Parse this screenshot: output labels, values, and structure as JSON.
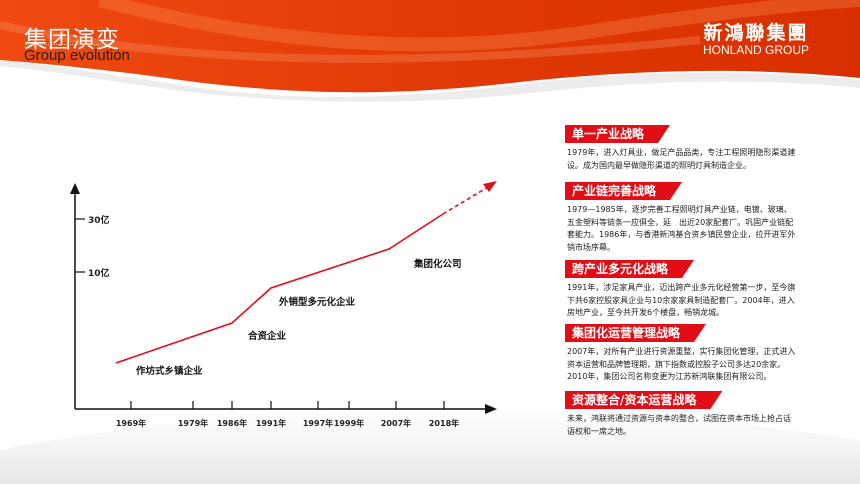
{
  "header": {
    "title_cn": "集团演变",
    "title_en": "Group evolution",
    "logo_cn": "新鴻聯集團",
    "logo_en": "HONLAND GROUP"
  },
  "chart": {
    "y_ticks": [
      "30亿",
      "10亿"
    ],
    "x_ticks": [
      "1969年",
      "1979年",
      "1986年",
      "1991年",
      "1997年",
      "1999年",
      "2007年",
      "2018年"
    ],
    "stages": [
      "作坊式乡镇企业",
      "合资企业",
      "外销型多元化企业",
      "集团化公司"
    ],
    "line_color": "#e20e17"
  },
  "sections": [
    {
      "title": "单一产业战略",
      "text": [
        "1979年，进入灯具业，做足产品品类，专注工程照明隐形渠道建设。成为国内最早做隐形渠道的照明灯具制造企业。"
      ]
    },
    {
      "title": "产业链完善战略",
      "text": [
        "1979—1985年，逐步完善工程照明灯具产业链，电镀、玻璃、五金塑料等链条一应俱全，延　出近20家配套厂。巩固产业链配套能力。1986年，与香港新鸿基合资乡镇民营企业，拉开进军外销市场序幕。"
      ]
    },
    {
      "title": "跨产业多元化战略",
      "text": [
        "1991年，涉足家具产业，迈出跨产业多元化经营第一步，至今旗下共6家控股家具企业与10余家家具制造配套厂。2004年，进入房地产业，至今共开发6个楼盘，畅销龙城。"
      ]
    },
    {
      "title": "集团化运营管理战略",
      "text": [
        "2007年，对所有产业进行资源重整，实行集团化管理，正式进入资本运营和品牌管理期，旗下指数或控股子公司多达20余家。",
        "2010年，集团公司名称变更为江苏新鸿联集团有限公司。"
      ]
    },
    {
      "title": "资源整合/资本运营战略",
      "text": [
        "未来，鸿联将通过资源与资本的整合，试图在资本市场上抢占话语权和一席之地。"
      ]
    }
  ],
  "colors": {
    "brand": "#e8400c",
    "accent": "#e20e17"
  }
}
